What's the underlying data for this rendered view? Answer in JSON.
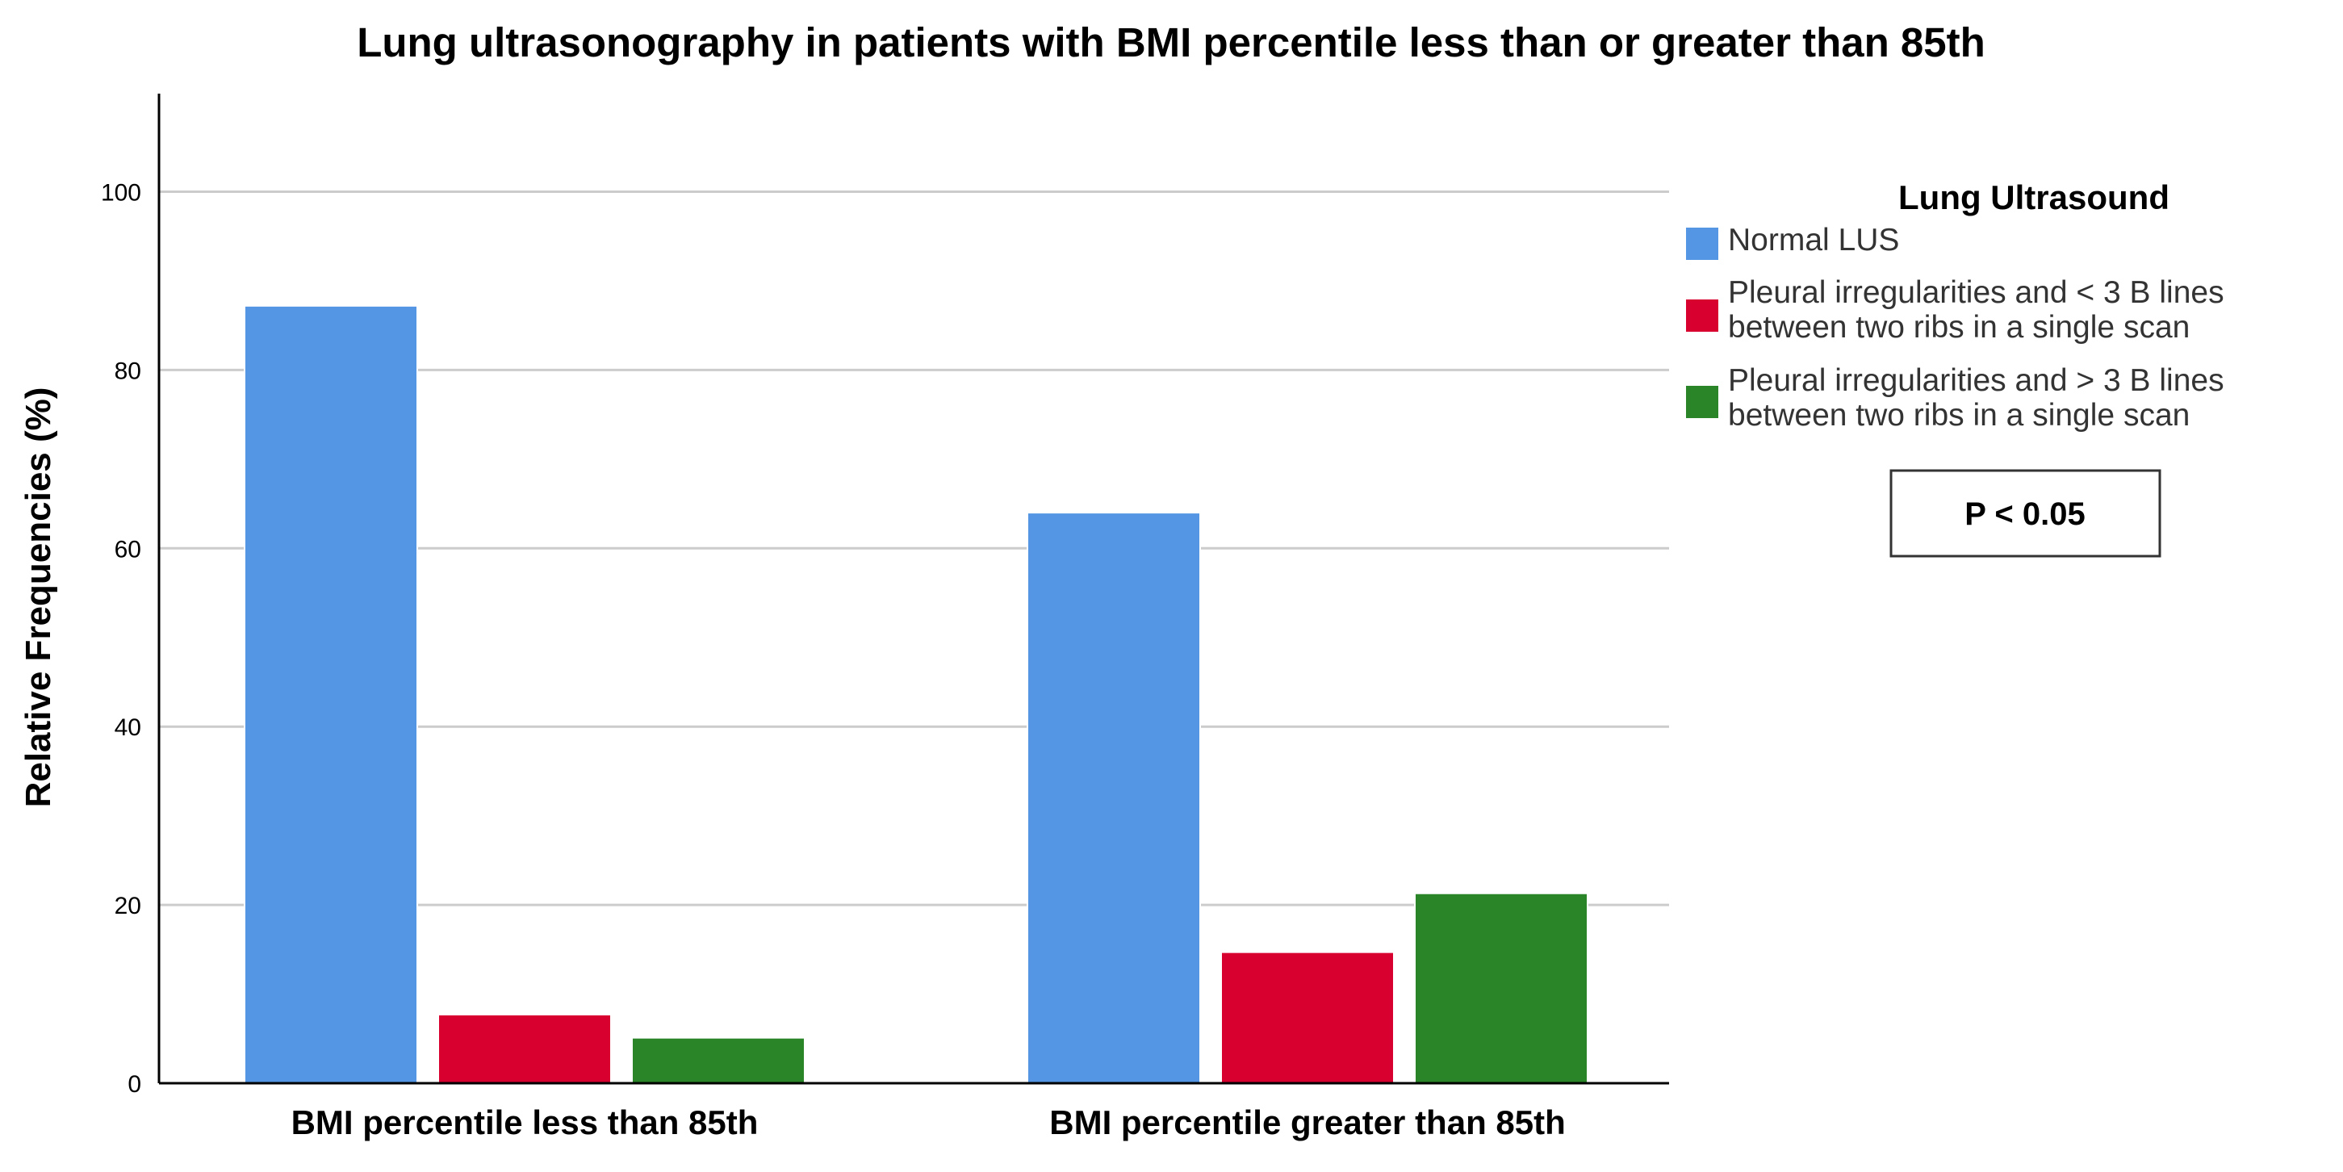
{
  "chart_data": {
    "type": "bar",
    "title": "Lung ultrasonography in patients with BMI percentile less than or greater than 85th",
    "xlabel": "",
    "ylabel": "Relative Frequencies (%)",
    "ylim": [
      0,
      111
    ],
    "yticks": [
      0,
      20,
      40,
      60,
      80,
      100
    ],
    "grid": true,
    "categories": [
      "BMI percentile less than 85th",
      "BMI percentile greater than 85th"
    ],
    "legend": {
      "title": "Lung Ultrasound",
      "placement": "right"
    },
    "series": [
      {
        "name": "Normal LUS",
        "label_lines": [
          "Normal LUS"
        ],
        "color": "#5596E4",
        "values": [
          87.2,
          64.0
        ]
      },
      {
        "name": "Pleural irregularities and < 3 B lines between two ribs in a single scan",
        "label_lines": [
          "Pleural irregularities and < 3 B lines",
          "between two ribs in a single scan"
        ],
        "color": "#D7002F",
        "values": [
          7.7,
          14.7
        ]
      },
      {
        "name": "Pleural irregularities and > 3 B lines between two ribs in a single scan",
        "label_lines": [
          "Pleural irregularities and > 3 B lines",
          "between two ribs in a single scan"
        ],
        "color": "#2A8428",
        "values": [
          5.1,
          21.3
        ]
      }
    ],
    "annotations": [
      "P < 0.05"
    ]
  }
}
